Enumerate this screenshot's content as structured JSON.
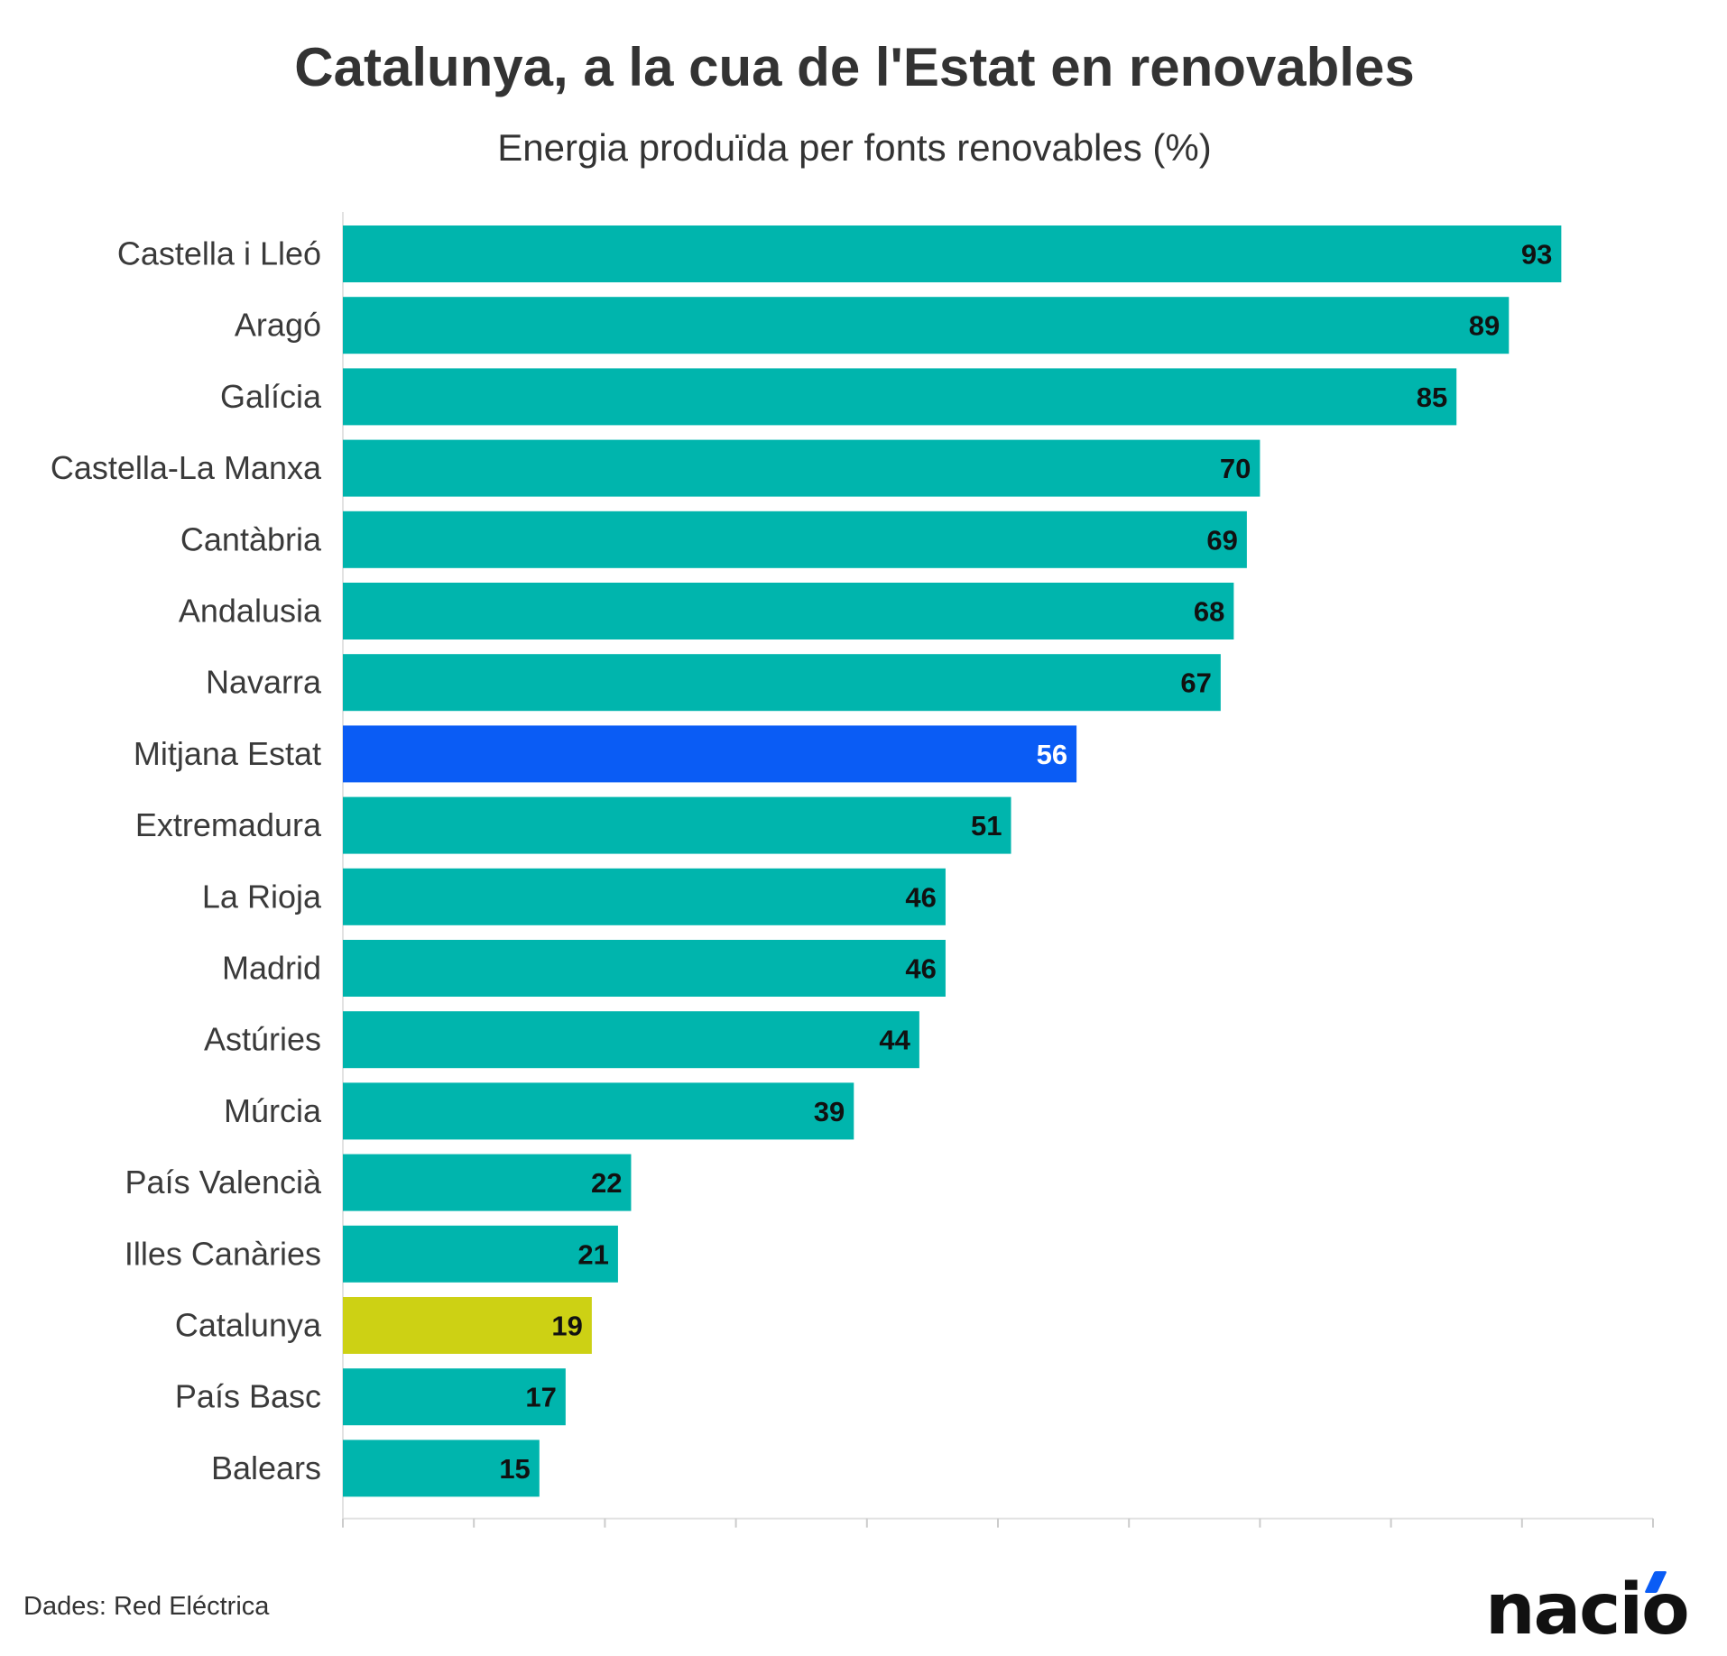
{
  "header": {
    "title": "Catalunya, a la cua de l'Estat en renovables",
    "subtitle": "Energia produïda per fonts renovables (%)"
  },
  "footer": {
    "source": "Dades: Red Eléctrica",
    "logo_text": "nació"
  },
  "colors": {
    "default_bar": "#00b5ad",
    "highlight_average": "#0a5cf5",
    "highlight_catalunya": "#cdd114",
    "label_dark": "#111111",
    "label_light": "#ffffff"
  },
  "chart_data": {
    "type": "bar",
    "orientation": "horizontal",
    "title": "Catalunya, a la cua de l'Estat en renovables",
    "subtitle": "Energia produïda per fonts renovables (%)",
    "categories": [
      "Castella i Lleó",
      "Aragó",
      "Galícia",
      "Castella-La Manxa",
      "Cantàbria",
      "Andalusia",
      "Navarra",
      "Mitjana Estat",
      "Extremadura",
      "La Rioja",
      "Madrid",
      "Astúries",
      "Múrcia",
      "País Valencià",
      "Illes Canàries",
      "Catalunya",
      "País Basc",
      "Balears"
    ],
    "values": [
      93,
      89,
      85,
      70,
      69,
      68,
      67,
      56,
      51,
      46,
      46,
      44,
      39,
      22,
      21,
      19,
      17,
      15
    ],
    "highlights": {
      "Mitjana Estat": "#0a5cf5",
      "Catalunya": "#cdd114"
    },
    "xlim": [
      0,
      100
    ],
    "xticks": [
      0,
      10,
      20,
      30,
      40,
      50,
      60,
      70,
      80,
      90,
      100
    ],
    "grid": false,
    "legend": "none",
    "data_labels": true
  }
}
